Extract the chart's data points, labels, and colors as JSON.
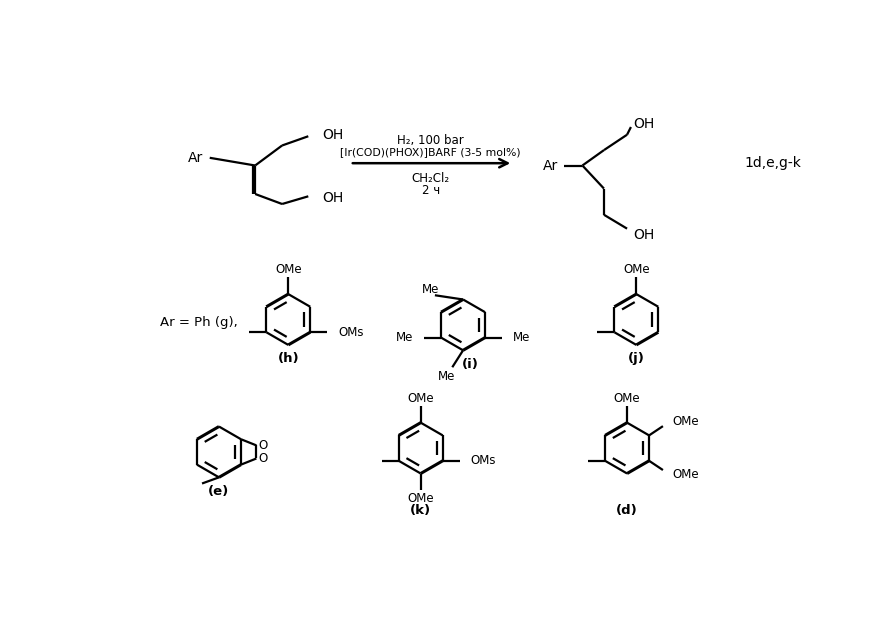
{
  "bg_color": "#ffffff",
  "line_color": "#000000",
  "lw": 1.6,
  "lw_bold": 2.2,
  "condition_line1": "H₂, 100 bar",
  "condition_line2": "[Ir(COD)(PHOX)]BARF (3-5 mol%)",
  "condition_line3": "CH₂Cl₂",
  "condition_line4": "2 ч",
  "product_label": "1d,e,g-k",
  "ar_label": "Ar = Ph (g),"
}
